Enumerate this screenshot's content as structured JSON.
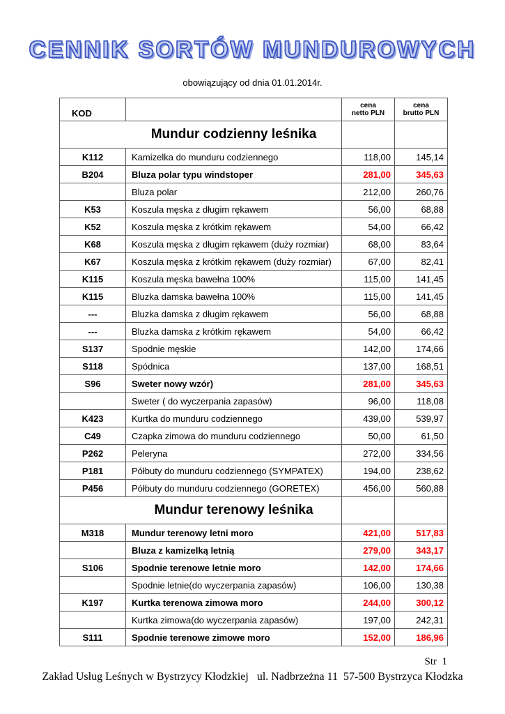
{
  "page": {
    "title": "CENNIK SORTÓW MUNDUROWYCH",
    "subtitle": "obowiązujący od dnia 01.01.2014r.",
    "footer_page": "Str  1",
    "footer_address": "Zakład Usług Leśnych w Bystrzycy Kłodzkiej   ul. Nadbrzeżna 11  57-500 Bystrzyca Kłodzka"
  },
  "colors": {
    "accent_red": "#ff0000",
    "title_blue": "#3b55c4"
  },
  "table": {
    "headers": {
      "kod": "KOD",
      "netto": [
        "cena",
        "netto PLN"
      ],
      "brutto": [
        "cena",
        "brutto PLN"
      ]
    },
    "sections": [
      {
        "title": "Mundur codzienny leśnika",
        "rows": [
          {
            "kod": "K112",
            "desc": "Kamizelka do munduru codziennego",
            "netto": "118,00",
            "brutto": "145,14",
            "bold": false,
            "red": false
          },
          {
            "kod": "B204",
            "desc": "Bluza polar  typu windstoper",
            "netto": "281,00",
            "brutto": "345,63",
            "bold": true,
            "red": true
          },
          {
            "kod": "",
            "desc": "Bluza polar",
            "netto": "212,00",
            "brutto": "260,76",
            "bold": false,
            "red": false
          },
          {
            "kod": "K53",
            "desc": "Koszula męska z długim rękawem",
            "netto": "56,00",
            "brutto": "68,88",
            "bold": false,
            "red": false
          },
          {
            "kod": "K52",
            "desc": "Koszula męska z krótkim rękawem",
            "netto": "54,00",
            "brutto": "66,42",
            "bold": false,
            "red": false
          },
          {
            "kod": "K68",
            "desc": "Koszula męska z długim rękawem (duży rozmiar)",
            "netto": "68,00",
            "brutto": "83,64",
            "bold": false,
            "red": false
          },
          {
            "kod": "K67",
            "desc": "Koszula męska z krótkim rękawem (duży rozmiar)",
            "netto": "67,00",
            "brutto": "82,41",
            "bold": false,
            "red": false
          },
          {
            "kod": "K115",
            "desc": "Koszula męska bawełna 100%",
            "netto": "115,00",
            "brutto": "141,45",
            "bold": false,
            "red": false
          },
          {
            "kod": "K115",
            "desc": "Bluzka damska bawełna 100%",
            "netto": "115,00",
            "brutto": "141,45",
            "bold": false,
            "red": false
          },
          {
            "kod": "---",
            "desc": "Bluzka damska z długim rękawem",
            "netto": "56,00",
            "brutto": "68,88",
            "bold": false,
            "red": false
          },
          {
            "kod": "---",
            "desc": "Bluzka damska z krótkim rękawem",
            "netto": "54,00",
            "brutto": "66,42",
            "bold": false,
            "red": false
          },
          {
            "kod": "S137",
            "desc": "Spodnie męskie",
            "netto": "142,00",
            "brutto": "174,66",
            "bold": false,
            "red": false
          },
          {
            "kod": "S118",
            "desc": "Spódnica",
            "netto": "137,00",
            "brutto": "168,51",
            "bold": false,
            "red": false
          },
          {
            "kod": "S96",
            "desc": "Sweter nowy wzór)",
            "netto": "281,00",
            "brutto": "345,63",
            "bold": true,
            "red": true
          },
          {
            "kod": "",
            "desc": "Sweter ( do wyczerpania zapasów)",
            "netto": "96,00",
            "brutto": "118,08",
            "bold": false,
            "red": false
          },
          {
            "kod": "K423",
            "desc": "Kurtka do munduru codziennego",
            "netto": "439,00",
            "brutto": "539,97",
            "bold": false,
            "red": false
          },
          {
            "kod": "C49",
            "desc": "Czapka zimowa do munduru codziennego",
            "netto": "50,00",
            "brutto": "61,50",
            "bold": false,
            "red": false
          },
          {
            "kod": "P262",
            "desc": "Peleryna",
            "netto": "272,00",
            "brutto": "334,56",
            "bold": false,
            "red": false
          },
          {
            "kod": "P181",
            "desc": "Półbuty do munduru codziennego (SYMPATEX)",
            "netto": "194,00",
            "brutto": "238,62",
            "bold": false,
            "red": false
          },
          {
            "kod": "P456",
            "desc": "Półbuty do munduru codziennego (GORETEX)",
            "netto": "456,00",
            "brutto": "560,88",
            "bold": false,
            "red": false
          }
        ]
      },
      {
        "title": "Mundur terenowy leśnika",
        "rows": [
          {
            "kod": "M318",
            "desc": "Mundur terenowy letni moro",
            "netto": "421,00",
            "brutto": "517,83",
            "bold": true,
            "red": true
          },
          {
            "kod": "",
            "desc": "Bluza z kamizelką letnią",
            "netto": "279,00",
            "brutto": "343,17",
            "bold": true,
            "red": true
          },
          {
            "kod": "S106",
            "desc": "Spodnie terenowe letnie moro",
            "netto": "142,00",
            "brutto": "174,66",
            "bold": true,
            "red": true
          },
          {
            "kod": "",
            "desc": "Spodnie letnie(do wyczerpania zapasów)",
            "netto": "106,00",
            "brutto": "130,38",
            "bold": false,
            "red": false
          },
          {
            "kod": "K197",
            "desc": "Kurtka terenowa zimowa moro",
            "netto": "244,00",
            "brutto": "300,12",
            "bold": true,
            "red": true
          },
          {
            "kod": "",
            "desc": "Kurtka zimowa(do wyczerpania zapasów)",
            "netto": "197,00",
            "brutto": "242,31",
            "bold": false,
            "red": false
          },
          {
            "kod": "S111",
            "desc": "Spodnie terenowe zimowe moro",
            "netto": "152,00",
            "brutto": "186,96",
            "bold": true,
            "red": true
          }
        ]
      }
    ]
  }
}
